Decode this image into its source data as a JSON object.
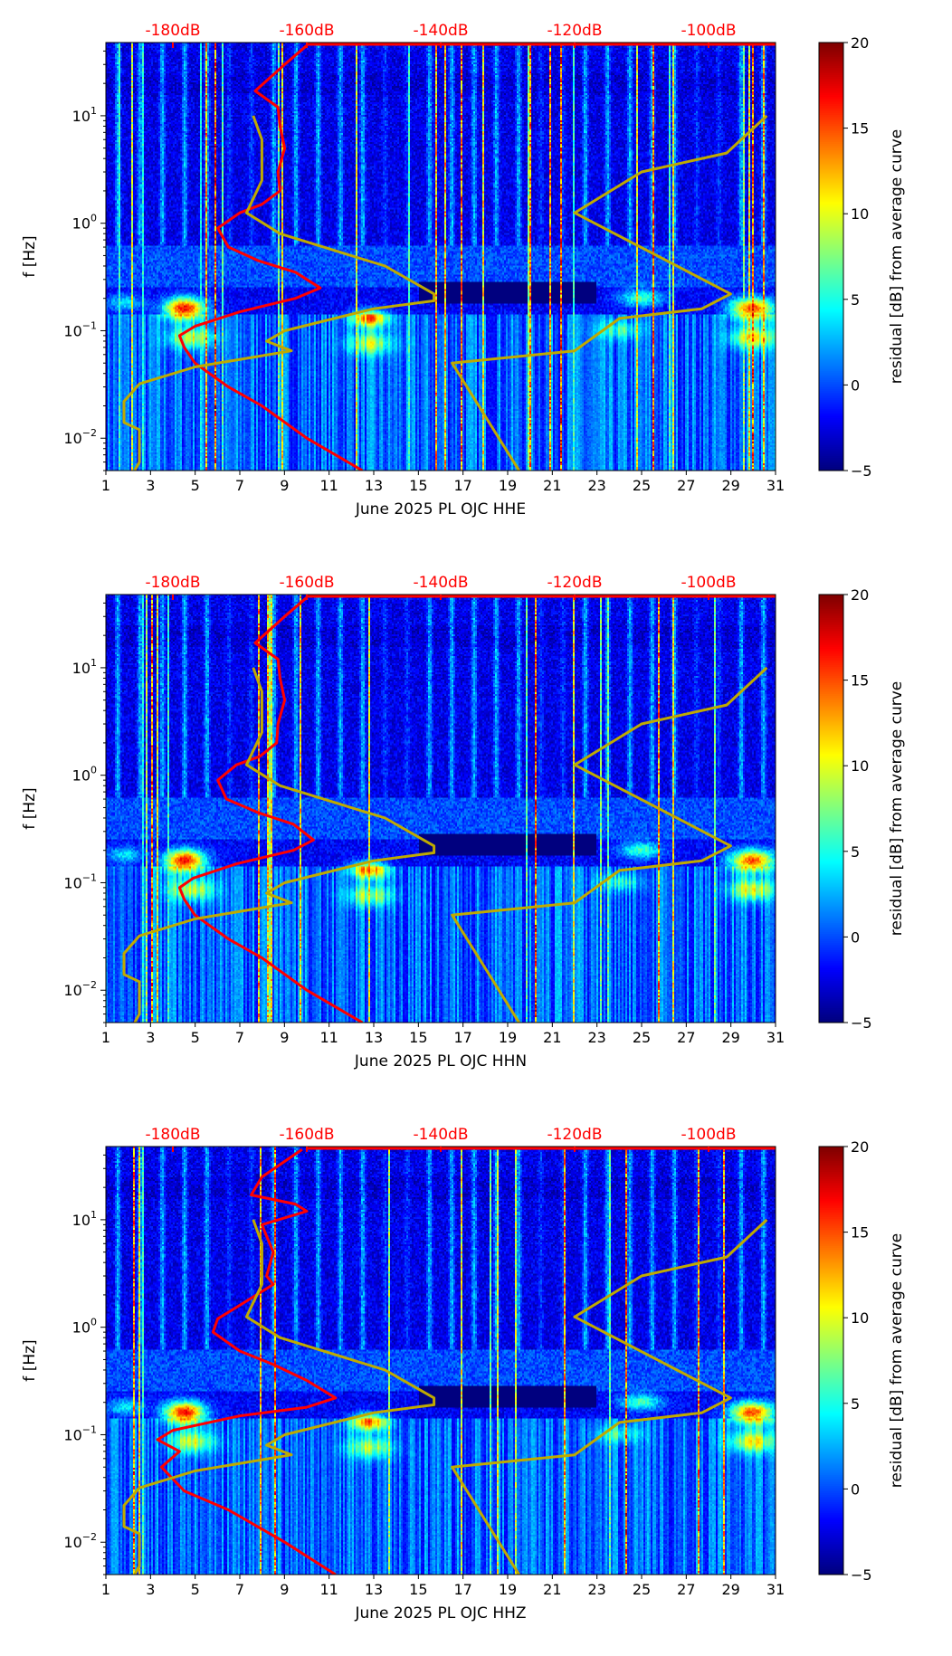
{
  "chart_data": [
    {
      "type": "heatmap",
      "xlabel": "June 2025 PL OJC  HHE",
      "ylabel": "f [Hz]",
      "colorbar_label": "residual [dB] from average curve",
      "x_ticks": [
        "1",
        "3",
        "5",
        "7",
        "9",
        "11",
        "13",
        "15",
        "17",
        "19",
        "21",
        "23",
        "25",
        "27",
        "29",
        "31"
      ],
      "xlim": [
        1,
        31
      ],
      "ylim_hz": [
        0.005,
        48
      ],
      "y_scale": "log",
      "y_ticks": [
        {
          "base": "10",
          "exp": "−2",
          "value": 0.01
        },
        {
          "base": "10",
          "exp": "−1",
          "value": 0.1
        },
        {
          "base": "10",
          "exp": "0",
          "value": 1
        },
        {
          "base": "10",
          "exp": "1",
          "value": 10
        }
      ],
      "top_axis_ticks": [
        {
          "label": "-180dB",
          "value": -180
        },
        {
          "label": "-160dB",
          "value": -160
        },
        {
          "label": "-140dB",
          "value": -140
        },
        {
          "label": "-120dB",
          "value": -120
        },
        {
          "label": "-100dB",
          "value": -100
        }
      ],
      "colorbar_ticks": [
        {
          "label": "20",
          "value": 20
        },
        {
          "label": "15",
          "value": 15
        },
        {
          "label": "10",
          "value": 10
        },
        {
          "label": "5",
          "value": 5
        },
        {
          "label": "0",
          "value": 0
        },
        {
          "label": "−5",
          "value": -5
        }
      ],
      "colorbar_range": [
        -5,
        20
      ],
      "series": [
        {
          "id": "psd",
          "color": "#ff0000",
          "points_db_hz": [
            [
              -160,
              45
            ],
            [
              -163.3,
              30
            ],
            [
              -167.7,
              17
            ],
            [
              -164.3,
              12
            ],
            [
              -164,
              8
            ],
            [
              -163.3,
              5
            ],
            [
              -164.3,
              3
            ],
            [
              -164,
              2
            ],
            [
              -166.7,
              1.5
            ],
            [
              -170,
              1.25
            ],
            [
              -173.3,
              0.9
            ],
            [
              -171.7,
              0.6
            ],
            [
              -167.3,
              0.45
            ],
            [
              -161.7,
              0.35
            ],
            [
              -158,
              0.25
            ],
            [
              -161.7,
              0.2
            ],
            [
              -170,
              0.15
            ],
            [
              -176.7,
              0.11
            ],
            [
              -179,
              0.09
            ],
            [
              -178.3,
              0.07
            ],
            [
              -176.7,
              0.05
            ],
            [
              -171.7,
              0.03
            ],
            [
              -166.7,
              0.02
            ],
            [
              -160,
              0.01
            ],
            [
              -151.7,
              0.005
            ]
          ]
        },
        {
          "id": "nlnm",
          "color": "#bfaa00",
          "points_db_hz": [
            [
              -168,
              10
            ],
            [
              -166.7,
              6
            ],
            [
              -166.7,
              2.5
            ],
            [
              -169,
              1.25
            ],
            [
              -164,
              0.8
            ],
            [
              -148.3,
              0.4
            ],
            [
              -141,
              0.22
            ],
            [
              -141,
              0.19
            ],
            [
              -150,
              0.16
            ],
            [
              -163.3,
              0.1
            ],
            [
              -166,
              0.08
            ],
            [
              -162.3,
              0.065
            ],
            [
              -176.7,
              0.046
            ],
            [
              -185,
              0.032
            ],
            [
              -187.3,
              0.022
            ],
            [
              -187.3,
              0.014
            ],
            [
              -185,
              0.012
            ],
            [
              -185,
              0.006
            ],
            [
              -185.7,
              0.005
            ]
          ]
        },
        {
          "id": "nhnm",
          "color": "#bfaa00",
          "points_db_hz": [
            [
              -91.3,
              10
            ],
            [
              -97.3,
              4.5
            ],
            [
              -110,
              3
            ],
            [
              -120,
              1.25
            ],
            [
              -96.7,
              0.22
            ],
            [
              -101,
              0.16
            ],
            [
              -113.3,
              0.13
            ],
            [
              -120,
              0.065
            ],
            [
              -138.3,
              0.05
            ],
            [
              -128.3,
              0.005
            ]
          ]
        }
      ]
    },
    {
      "type": "heatmap",
      "xlabel": "June 2025 PL OJC  HHN",
      "ylabel": "f [Hz]",
      "colorbar_label": "residual [dB] from average curve",
      "x_ticks": [
        "1",
        "3",
        "5",
        "7",
        "9",
        "11",
        "13",
        "15",
        "17",
        "19",
        "21",
        "23",
        "25",
        "27",
        "29",
        "31"
      ],
      "xlim": [
        1,
        31
      ],
      "ylim_hz": [
        0.005,
        48
      ],
      "y_scale": "log",
      "y_ticks": [
        {
          "base": "10",
          "exp": "−2",
          "value": 0.01
        },
        {
          "base": "10",
          "exp": "−1",
          "value": 0.1
        },
        {
          "base": "10",
          "exp": "0",
          "value": 1
        },
        {
          "base": "10",
          "exp": "1",
          "value": 10
        }
      ],
      "top_axis_ticks": [
        {
          "label": "-180dB",
          "value": -180
        },
        {
          "label": "-160dB",
          "value": -160
        },
        {
          "label": "-140dB",
          "value": -140
        },
        {
          "label": "-120dB",
          "value": -120
        },
        {
          "label": "-100dB",
          "value": -100
        }
      ],
      "colorbar_ticks": [
        {
          "label": "20",
          "value": 20
        },
        {
          "label": "15",
          "value": 15
        },
        {
          "label": "10",
          "value": 10
        },
        {
          "label": "5",
          "value": 5
        },
        {
          "label": "0",
          "value": 0
        },
        {
          "label": "−5",
          "value": -5
        }
      ],
      "colorbar_range": [
        -5,
        20
      ],
      "series": [
        {
          "id": "psd",
          "color": "#ff0000",
          "points_db_hz": [
            [
              -160,
              45
            ],
            [
              -163.3,
              30
            ],
            [
              -167.7,
              17
            ],
            [
              -164.3,
              12
            ],
            [
              -164,
              8
            ],
            [
              -163.3,
              5
            ],
            [
              -164.3,
              3
            ],
            [
              -164.5,
              2
            ],
            [
              -167,
              1.5
            ],
            [
              -170.5,
              1.25
            ],
            [
              -173.3,
              0.9
            ],
            [
              -172,
              0.6
            ],
            [
              -167.3,
              0.45
            ],
            [
              -162,
              0.35
            ],
            [
              -159,
              0.25
            ],
            [
              -162,
              0.2
            ],
            [
              -170.5,
              0.15
            ],
            [
              -177,
              0.11
            ],
            [
              -179,
              0.09
            ],
            [
              -178.3,
              0.07
            ],
            [
              -176.7,
              0.05
            ],
            [
              -171.7,
              0.03
            ],
            [
              -166.7,
              0.02
            ],
            [
              -160,
              0.01
            ],
            [
              -151.7,
              0.005
            ]
          ]
        },
        {
          "id": "nlnm",
          "color": "#bfaa00",
          "points_db_hz": [
            [
              -168,
              10
            ],
            [
              -166.7,
              6
            ],
            [
              -166.7,
              2.5
            ],
            [
              -169,
              1.25
            ],
            [
              -164,
              0.8
            ],
            [
              -148.3,
              0.4
            ],
            [
              -141,
              0.22
            ],
            [
              -141,
              0.19
            ],
            [
              -150,
              0.16
            ],
            [
              -163.3,
              0.1
            ],
            [
              -166,
              0.08
            ],
            [
              -162.3,
              0.065
            ],
            [
              -176.7,
              0.046
            ],
            [
              -185,
              0.032
            ],
            [
              -187.3,
              0.022
            ],
            [
              -187.3,
              0.014
            ],
            [
              -185,
              0.012
            ],
            [
              -185,
              0.006
            ],
            [
              -185.7,
              0.005
            ]
          ]
        },
        {
          "id": "nhnm",
          "color": "#bfaa00",
          "points_db_hz": [
            [
              -91.3,
              10
            ],
            [
              -97.3,
              4.5
            ],
            [
              -110,
              3
            ],
            [
              -120,
              1.25
            ],
            [
              -96.7,
              0.22
            ],
            [
              -101,
              0.16
            ],
            [
              -113.3,
              0.13
            ],
            [
              -120,
              0.065
            ],
            [
              -138.3,
              0.05
            ],
            [
              -128.3,
              0.005
            ]
          ]
        }
      ]
    },
    {
      "type": "heatmap",
      "xlabel": "June 2025 PL OJC  HHZ",
      "ylabel": "f [Hz]",
      "colorbar_label": "residual [dB] from average curve",
      "x_ticks": [
        "1",
        "3",
        "5",
        "7",
        "9",
        "11",
        "13",
        "15",
        "17",
        "19",
        "21",
        "23",
        "25",
        "27",
        "29",
        "31"
      ],
      "xlim": [
        1,
        31
      ],
      "ylim_hz": [
        0.005,
        48
      ],
      "y_scale": "log",
      "y_ticks": [
        {
          "base": "10",
          "exp": "−2",
          "value": 0.01
        },
        {
          "base": "10",
          "exp": "−1",
          "value": 0.1
        },
        {
          "base": "10",
          "exp": "0",
          "value": 1
        },
        {
          "base": "10",
          "exp": "1",
          "value": 10
        }
      ],
      "top_axis_ticks": [
        {
          "label": "-180dB",
          "value": -180
        },
        {
          "label": "-160dB",
          "value": -160
        },
        {
          "label": "-140dB",
          "value": -140
        },
        {
          "label": "-120dB",
          "value": -120
        },
        {
          "label": "-100dB",
          "value": -100
        }
      ],
      "colorbar_ticks": [
        {
          "label": "20",
          "value": 20
        },
        {
          "label": "15",
          "value": 15
        },
        {
          "label": "10",
          "value": 10
        },
        {
          "label": "5",
          "value": 5
        },
        {
          "label": "0",
          "value": 0
        },
        {
          "label": "−5",
          "value": -5
        }
      ],
      "colorbar_range": [
        -5,
        20
      ],
      "series": [
        {
          "id": "psd",
          "color": "#ff0000",
          "points_db_hz": [
            [
              -160.7,
              45
            ],
            [
              -166.7,
              25
            ],
            [
              -168.3,
              17
            ],
            [
              -161.7,
              14
            ],
            [
              -160,
              12
            ],
            [
              -166.7,
              9
            ],
            [
              -165,
              5
            ],
            [
              -166,
              3
            ],
            [
              -165,
              2.5
            ],
            [
              -170,
              1.6
            ],
            [
              -173.3,
              1.2
            ],
            [
              -174,
              0.9
            ],
            [
              -170,
              0.6
            ],
            [
              -165,
              0.45
            ],
            [
              -160,
              0.32
            ],
            [
              -155.7,
              0.22
            ],
            [
              -160,
              0.18
            ],
            [
              -170,
              0.15
            ],
            [
              -180,
              0.11
            ],
            [
              -182.3,
              0.09
            ],
            [
              -179,
              0.07
            ],
            [
              -181.7,
              0.05
            ],
            [
              -178.3,
              0.03
            ],
            [
              -171.7,
              0.02
            ],
            [
              -163.3,
              0.01
            ],
            [
              -155.7,
              0.005
            ]
          ]
        },
        {
          "id": "nlnm",
          "color": "#bfaa00",
          "points_db_hz": [
            [
              -168,
              10
            ],
            [
              -166.7,
              6
            ],
            [
              -166.7,
              2.5
            ],
            [
              -169,
              1.25
            ],
            [
              -164,
              0.8
            ],
            [
              -148.3,
              0.4
            ],
            [
              -141,
              0.22
            ],
            [
              -141,
              0.19
            ],
            [
              -150,
              0.16
            ],
            [
              -163.3,
              0.1
            ],
            [
              -166,
              0.08
            ],
            [
              -162.3,
              0.065
            ],
            [
              -176.7,
              0.046
            ],
            [
              -185,
              0.032
            ],
            [
              -187.3,
              0.022
            ],
            [
              -187.3,
              0.014
            ],
            [
              -185,
              0.012
            ],
            [
              -185,
              0.006
            ],
            [
              -185.7,
              0.005
            ]
          ]
        },
        {
          "id": "nhnm",
          "color": "#bfaa00",
          "points_db_hz": [
            [
              -91.3,
              10
            ],
            [
              -97.3,
              4.5
            ],
            [
              -110,
              3
            ],
            [
              -120,
              1.25
            ],
            [
              -96.7,
              0.22
            ],
            [
              -101,
              0.16
            ],
            [
              -113.3,
              0.13
            ],
            [
              -120,
              0.065
            ],
            [
              -138.3,
              0.05
            ],
            [
              -128.3,
              0.005
            ]
          ]
        }
      ]
    }
  ]
}
